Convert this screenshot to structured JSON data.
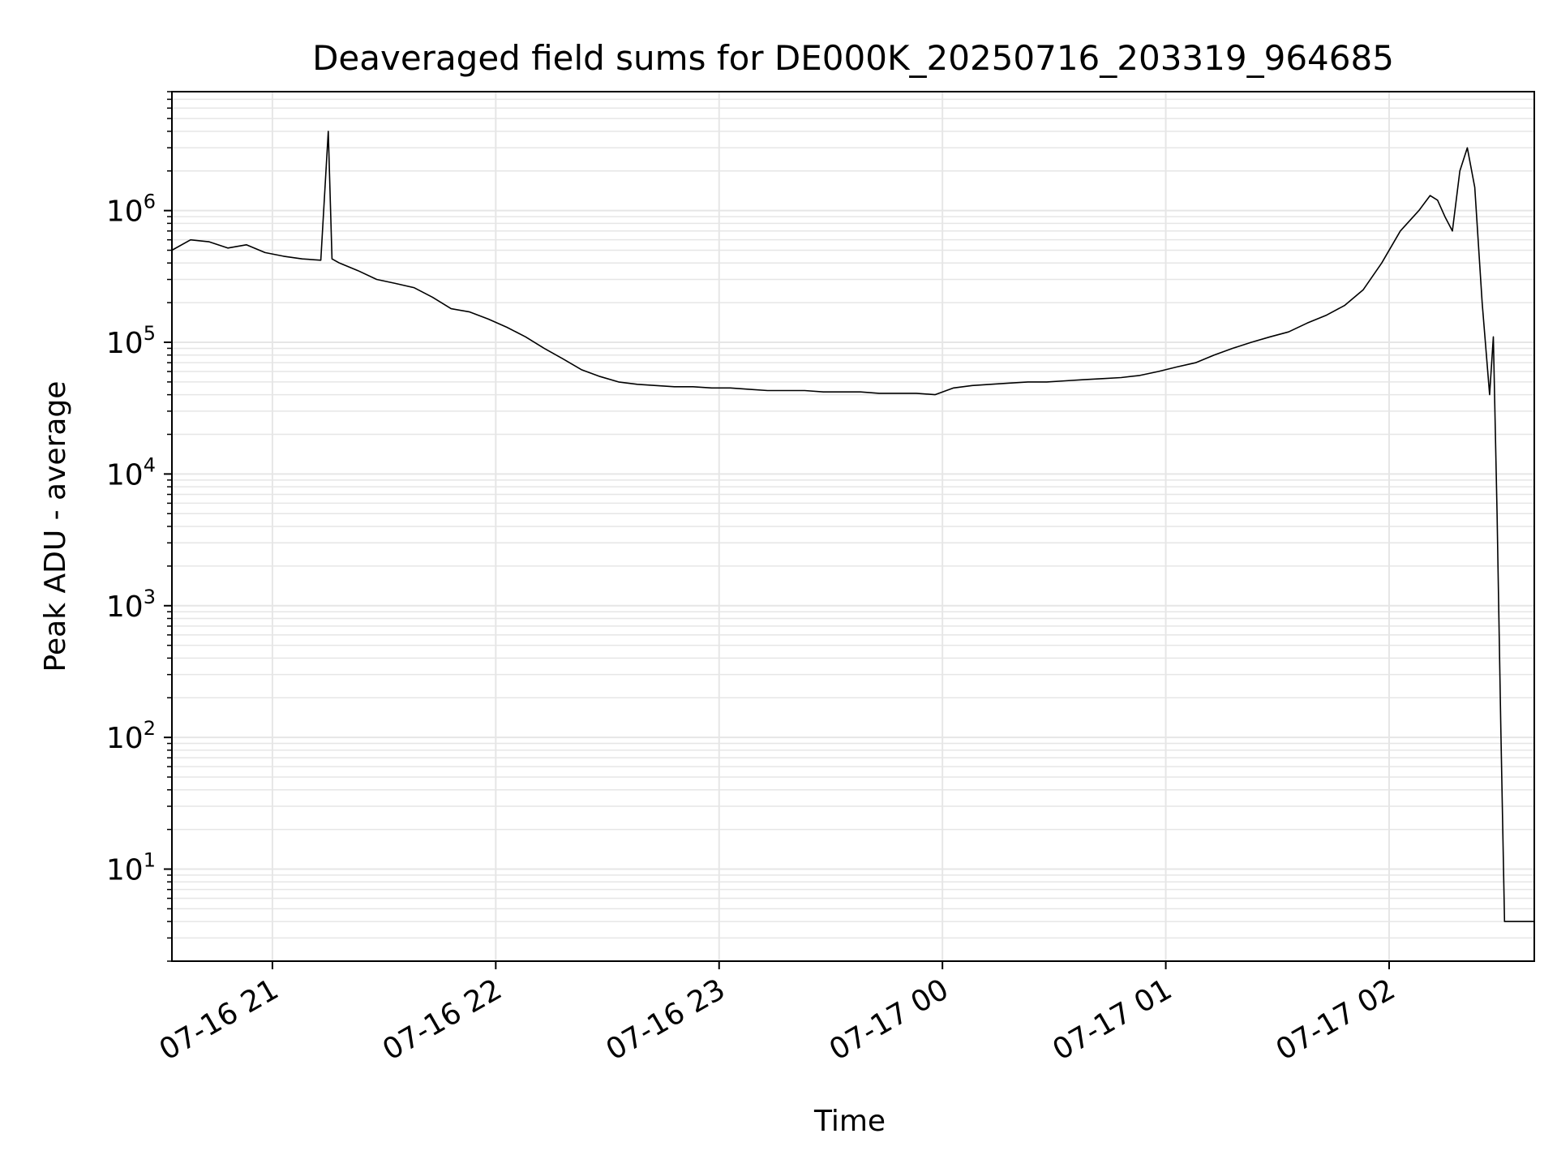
{
  "chart_data": {
    "type": "line",
    "title": "Deaveraged field sums for DE000K_20250716_203319_964685",
    "xlabel": "Time",
    "ylabel": "Peak ADU - average",
    "yscale": "log",
    "grid": true,
    "xlim": [
      "2025-07-16 20:33",
      "2025-07-17 02:39"
    ],
    "ylim": [
      2.0,
      8000000
    ],
    "x_ticks": [
      {
        "value": "2025-07-16 21:00",
        "label": "07-16 21"
      },
      {
        "value": "2025-07-16 22:00",
        "label": "07-16 22"
      },
      {
        "value": "2025-07-16 23:00",
        "label": "07-16 23"
      },
      {
        "value": "2025-07-17 00:00",
        "label": "07-17 00"
      },
      {
        "value": "2025-07-17 01:00",
        "label": "07-17 01"
      },
      {
        "value": "2025-07-17 02:00",
        "label": "07-17 02"
      }
    ],
    "y_ticks": [
      {
        "value": 10,
        "base": "10",
        "exp": "1"
      },
      {
        "value": 100,
        "base": "10",
        "exp": "2"
      },
      {
        "value": 1000,
        "base": "10",
        "exp": "3"
      },
      {
        "value": 10000,
        "base": "10",
        "exp": "4"
      },
      {
        "value": 100000,
        "base": "10",
        "exp": "5"
      },
      {
        "value": 1000000,
        "base": "10",
        "exp": "6"
      }
    ],
    "line_color": "#000000",
    "grid_color": "#e6e6e6",
    "series": [
      {
        "x": [
          "2025-07-16 20:33",
          "2025-07-16 20:38",
          "2025-07-16 20:43",
          "2025-07-16 20:48",
          "2025-07-16 20:53",
          "2025-07-16 20:58",
          "2025-07-16 21:03",
          "2025-07-16 21:08",
          "2025-07-16 21:13",
          "2025-07-16 21:15",
          "2025-07-16 21:16",
          "2025-07-16 21:18",
          "2025-07-16 21:23",
          "2025-07-16 21:28",
          "2025-07-16 21:33",
          "2025-07-16 21:38",
          "2025-07-16 21:43",
          "2025-07-16 21:48",
          "2025-07-16 21:53",
          "2025-07-16 21:58",
          "2025-07-16 22:03",
          "2025-07-16 22:08",
          "2025-07-16 22:13",
          "2025-07-16 22:18",
          "2025-07-16 22:23",
          "2025-07-16 22:28",
          "2025-07-16 22:33",
          "2025-07-16 22:38",
          "2025-07-16 22:43",
          "2025-07-16 22:48",
          "2025-07-16 22:53",
          "2025-07-16 22:58",
          "2025-07-16 23:03",
          "2025-07-16 23:08",
          "2025-07-16 23:13",
          "2025-07-16 23:18",
          "2025-07-16 23:23",
          "2025-07-16 23:28",
          "2025-07-16 23:33",
          "2025-07-16 23:38",
          "2025-07-16 23:43",
          "2025-07-16 23:48",
          "2025-07-16 23:53",
          "2025-07-16 23:58",
          "2025-07-17 00:03",
          "2025-07-17 00:08",
          "2025-07-17 00:13",
          "2025-07-17 00:18",
          "2025-07-17 00:23",
          "2025-07-17 00:28",
          "2025-07-17 00:33",
          "2025-07-17 00:38",
          "2025-07-17 00:43",
          "2025-07-17 00:48",
          "2025-07-17 00:53",
          "2025-07-17 00:58",
          "2025-07-17 01:03",
          "2025-07-17 01:08",
          "2025-07-17 01:13",
          "2025-07-17 01:18",
          "2025-07-17 01:23",
          "2025-07-17 01:28",
          "2025-07-17 01:33",
          "2025-07-17 01:38",
          "2025-07-17 01:43",
          "2025-07-17 01:48",
          "2025-07-17 01:53",
          "2025-07-17 01:58",
          "2025-07-17 02:03",
          "2025-07-17 02:08",
          "2025-07-17 02:11",
          "2025-07-17 02:13",
          "2025-07-17 02:15",
          "2025-07-17 02:17",
          "2025-07-17 02:19",
          "2025-07-17 02:21",
          "2025-07-17 02:23",
          "2025-07-17 02:25",
          "2025-07-17 02:27",
          "2025-07-17 02:28",
          "2025-07-17 02:29",
          "2025-07-17 02:30",
          "2025-07-17 02:31",
          "2025-07-17 02:39"
        ],
        "y": [
          500000,
          600000,
          580000,
          520000,
          550000,
          480000,
          450000,
          430000,
          420000,
          4000000,
          430000,
          400000,
          350000,
          300000,
          280000,
          260000,
          220000,
          180000,
          170000,
          150000,
          130000,
          110000,
          90000,
          75000,
          62000,
          55000,
          50000,
          48000,
          47000,
          46000,
          46000,
          45000,
          45000,
          44000,
          43000,
          43000,
          43000,
          42000,
          42000,
          42000,
          41000,
          41000,
          41000,
          40000,
          45000,
          47000,
          48000,
          49000,
          50000,
          50000,
          51000,
          52000,
          53000,
          54000,
          56000,
          60000,
          65000,
          70000,
          80000,
          90000,
          100000,
          110000,
          120000,
          140000,
          160000,
          190000,
          250000,
          400000,
          700000,
          1000000,
          1300000,
          1200000,
          900000,
          700000,
          2000000,
          3000000,
          1500000,
          200000,
          40000,
          110000,
          5000,
          120,
          4,
          4
        ]
      }
    ]
  }
}
